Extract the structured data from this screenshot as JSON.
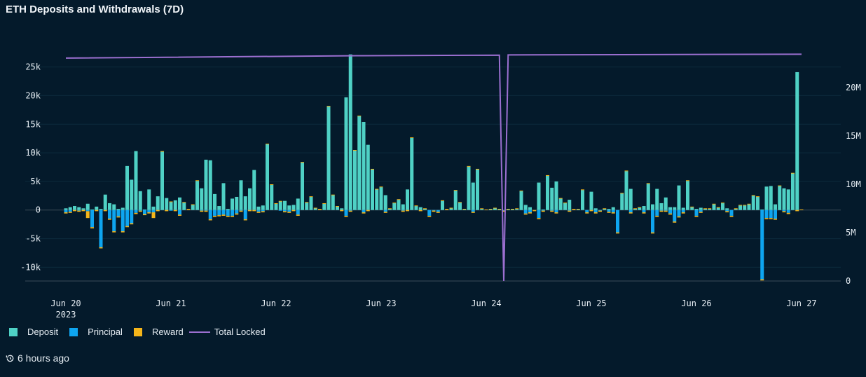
{
  "title": "ETH Deposits and Withdrawals (7D)",
  "footer": {
    "updated": "6 hours ago",
    "icon": "history-icon"
  },
  "legend": [
    {
      "label": "Deposit",
      "color": "#4fd1c5"
    },
    {
      "label": "Principal",
      "color": "#0ea5f0"
    },
    {
      "label": "Reward",
      "color": "#f5b51a"
    },
    {
      "label": "Total Locked",
      "color": "#9b6fd0"
    }
  ],
  "chart_data": {
    "type": "bar",
    "stacked": true,
    "grid": true,
    "legend_position": "bottom-left",
    "x_ticks": [
      {
        "at": "2023-06-20 00:00",
        "label": "Jun 20",
        "sublabel": "2023"
      },
      {
        "at": "2023-06-21 00:00",
        "label": "Jun 21"
      },
      {
        "at": "2023-06-22 00:00",
        "label": "Jun 22"
      },
      {
        "at": "2023-06-23 00:00",
        "label": "Jun 23"
      },
      {
        "at": "2023-06-24 00:00",
        "label": "Jun 24"
      },
      {
        "at": "2023-06-25 00:00",
        "label": "Jun 25"
      },
      {
        "at": "2023-06-26 00:00",
        "label": "Jun 26"
      },
      {
        "at": "2023-06-27 00:00",
        "label": "Jun 27"
      }
    ],
    "y_left": {
      "ylim": [
        -12400,
        27400
      ],
      "ticks": [
        -10000,
        -5000,
        0,
        5000,
        10000,
        15000,
        20000,
        25000
      ],
      "tick_labels": [
        "-10k",
        "-5k",
        "0",
        "5k",
        "10k",
        "15k",
        "20k",
        "25k"
      ]
    },
    "y_right": {
      "ylim": [
        0,
        23550000
      ],
      "ticks": [
        0,
        5000000,
        10000000,
        15000000,
        20000000
      ],
      "tick_labels": [
        "0",
        "5M",
        "10M",
        "15M",
        "20M"
      ]
    },
    "x": [
      "2023-06-20 00:00",
      "2023-06-20 01:00",
      "2023-06-20 02:00",
      "2023-06-20 03:00",
      "2023-06-20 04:00",
      "2023-06-20 05:00",
      "2023-06-20 06:00",
      "2023-06-20 07:00",
      "2023-06-20 08:00",
      "2023-06-20 09:00",
      "2023-06-20 10:00",
      "2023-06-20 11:00",
      "2023-06-20 12:00",
      "2023-06-20 13:00",
      "2023-06-20 14:00",
      "2023-06-20 15:00",
      "2023-06-20 16:00",
      "2023-06-20 17:00",
      "2023-06-20 18:00",
      "2023-06-20 19:00",
      "2023-06-20 20:00",
      "2023-06-20 21:00",
      "2023-06-20 22:00",
      "2023-06-20 23:00",
      "2023-06-21 00:00",
      "2023-06-21 01:00",
      "2023-06-21 02:00",
      "2023-06-21 03:00",
      "2023-06-21 04:00",
      "2023-06-21 05:00",
      "2023-06-21 06:00",
      "2023-06-21 07:00",
      "2023-06-21 08:00",
      "2023-06-21 09:00",
      "2023-06-21 10:00",
      "2023-06-21 11:00",
      "2023-06-21 12:00",
      "2023-06-21 13:00",
      "2023-06-21 14:00",
      "2023-06-21 15:00",
      "2023-06-21 16:00",
      "2023-06-21 17:00",
      "2023-06-21 18:00",
      "2023-06-21 19:00",
      "2023-06-21 20:00",
      "2023-06-21 21:00",
      "2023-06-21 22:00",
      "2023-06-21 23:00",
      "2023-06-22 00:00",
      "2023-06-22 01:00",
      "2023-06-22 02:00",
      "2023-06-22 03:00",
      "2023-06-22 04:00",
      "2023-06-22 05:00",
      "2023-06-22 06:00",
      "2023-06-22 07:00",
      "2023-06-22 08:00",
      "2023-06-22 09:00",
      "2023-06-22 10:00",
      "2023-06-22 11:00",
      "2023-06-22 12:00",
      "2023-06-22 13:00",
      "2023-06-22 14:00",
      "2023-06-22 15:00",
      "2023-06-22 16:00",
      "2023-06-22 17:00",
      "2023-06-22 18:00",
      "2023-06-22 19:00",
      "2023-06-22 20:00",
      "2023-06-22 21:00",
      "2023-06-22 22:00",
      "2023-06-22 23:00",
      "2023-06-23 00:00",
      "2023-06-23 01:00",
      "2023-06-23 02:00",
      "2023-06-23 03:00",
      "2023-06-23 04:00",
      "2023-06-23 05:00",
      "2023-06-23 06:00",
      "2023-06-23 07:00",
      "2023-06-23 08:00",
      "2023-06-23 09:00",
      "2023-06-23 10:00",
      "2023-06-23 11:00",
      "2023-06-23 12:00",
      "2023-06-23 13:00",
      "2023-06-23 14:00",
      "2023-06-23 15:00",
      "2023-06-23 16:00",
      "2023-06-23 17:00",
      "2023-06-23 18:00",
      "2023-06-23 19:00",
      "2023-06-23 20:00",
      "2023-06-23 21:00",
      "2023-06-23 22:00",
      "2023-06-23 23:00",
      "2023-06-24 00:00",
      "2023-06-24 01:00",
      "2023-06-24 02:00",
      "2023-06-24 03:00",
      "2023-06-24 04:00",
      "2023-06-24 05:00",
      "2023-06-24 06:00",
      "2023-06-24 07:00",
      "2023-06-24 08:00",
      "2023-06-24 09:00",
      "2023-06-24 10:00",
      "2023-06-24 11:00",
      "2023-06-24 12:00",
      "2023-06-24 13:00",
      "2023-06-24 14:00",
      "2023-06-24 15:00",
      "2023-06-24 16:00",
      "2023-06-24 17:00",
      "2023-06-24 18:00",
      "2023-06-24 19:00",
      "2023-06-24 20:00",
      "2023-06-24 21:00",
      "2023-06-24 22:00",
      "2023-06-24 23:00",
      "2023-06-25 00:00",
      "2023-06-25 01:00",
      "2023-06-25 02:00",
      "2023-06-25 03:00",
      "2023-06-25 04:00",
      "2023-06-25 05:00",
      "2023-06-25 06:00",
      "2023-06-25 07:00",
      "2023-06-25 08:00",
      "2023-06-25 09:00",
      "2023-06-25 10:00",
      "2023-06-25 11:00",
      "2023-06-25 12:00",
      "2023-06-25 13:00",
      "2023-06-25 14:00",
      "2023-06-25 15:00",
      "2023-06-25 16:00",
      "2023-06-25 17:00",
      "2023-06-25 18:00",
      "2023-06-25 19:00",
      "2023-06-25 20:00",
      "2023-06-25 21:00",
      "2023-06-25 22:00",
      "2023-06-25 23:00",
      "2023-06-26 00:00",
      "2023-06-26 01:00",
      "2023-06-26 02:00",
      "2023-06-26 03:00",
      "2023-06-26 04:00",
      "2023-06-26 05:00",
      "2023-06-26 06:00",
      "2023-06-26 07:00",
      "2023-06-26 08:00",
      "2023-06-26 09:00",
      "2023-06-26 10:00",
      "2023-06-26 11:00",
      "2023-06-26 12:00",
      "2023-06-26 13:00",
      "2023-06-26 14:00",
      "2023-06-26 15:00",
      "2023-06-26 16:00",
      "2023-06-26 17:00",
      "2023-06-26 18:00",
      "2023-06-26 19:00",
      "2023-06-26 20:00",
      "2023-06-26 21:00",
      "2023-06-26 22:00",
      "2023-06-26 23:00",
      "2023-06-27 00:00"
    ],
    "series": [
      {
        "name": "Deposit",
        "type": "bar",
        "axis": "left",
        "values": [
          300,
          500,
          700,
          500,
          300,
          1100,
          100,
          600,
          200,
          2700,
          1200,
          1000,
          200,
          400,
          7700,
          5300,
          10300,
          3300,
          100,
          3600,
          600,
          2400,
          10200,
          2100,
          1400,
          1700,
          2200,
          1300,
          0,
          900,
          5100,
          3800,
          8800,
          8700,
          2800,
          700,
          4700,
          200,
          2000,
          2300,
          5200,
          2400,
          3800,
          7000,
          600,
          800,
          11500,
          4400,
          1100,
          1500,
          1600,
          800,
          900,
          2000,
          8300,
          1300,
          2300,
          300,
          0,
          1100,
          18100,
          2600,
          600,
          300,
          19700,
          27200,
          10400,
          16400,
          15400,
          11400,
          7100,
          3600,
          4000,
          2600,
          200,
          1200,
          1800,
          1000,
          3600,
          12600,
          700,
          500,
          200,
          0,
          0,
          0,
          1600,
          0,
          300,
          3400,
          1300,
          100,
          7600,
          4800,
          7100,
          200,
          0,
          100,
          300,
          100,
          0,
          100,
          100,
          200,
          3300,
          900,
          500,
          0,
          4800,
          100,
          6000,
          3900,
          5000,
          2000,
          1200,
          1800,
          0,
          100,
          3500,
          0,
          3200,
          300,
          0,
          200,
          200,
          500,
          0,
          2900,
          6800,
          3700,
          200,
          400,
          700,
          4600,
          1000,
          3700,
          1200,
          2200,
          500,
          500,
          4300,
          400,
          5100,
          500,
          200,
          400,
          200,
          200,
          1000,
          400,
          1200,
          300,
          0,
          200,
          800,
          800,
          1000,
          2500,
          2300,
          100,
          4100,
          4200,
          1000,
          4200,
          3800,
          3600,
          6400,
          24100,
          0
        ]
      },
      {
        "name": "Principal",
        "type": "bar",
        "axis": "left",
        "values": [
          -400,
          -300,
          0,
          -100,
          0,
          -200,
          -3000,
          0,
          -6500,
          0,
          -1500,
          -3700,
          -1100,
          -3700,
          -2800,
          -2300,
          -500,
          -100,
          -700,
          -400,
          -400,
          0,
          0,
          0,
          -100,
          0,
          -800,
          0,
          0,
          0,
          0,
          -100,
          -100,
          -1600,
          -1000,
          -900,
          -800,
          -1000,
          -1000,
          -600,
          -100,
          -1600,
          0,
          0,
          -300,
          -200,
          0,
          0,
          0,
          -100,
          -200,
          -300,
          0,
          -800,
          0,
          0,
          0,
          0,
          0,
          0,
          0,
          0,
          0,
          0,
          -1000,
          -100,
          0,
          0,
          -400,
          0,
          0,
          0,
          0,
          -300,
          0,
          0,
          0,
          -100,
          0,
          0,
          0,
          0,
          0,
          -1000,
          -100,
          -300,
          0,
          0,
          0,
          0,
          0,
          0,
          0,
          -300,
          0,
          0,
          0,
          0,
          0,
          0,
          -100,
          0,
          0,
          0,
          0,
          -600,
          -400,
          0,
          -1400,
          -100,
          0,
          -100,
          -400,
          0,
          0,
          -100,
          0,
          0,
          0,
          -400,
          0,
          -400,
          -100,
          0,
          -300,
          -400,
          -3900,
          0,
          0,
          -400,
          0,
          0,
          -400,
          0,
          -3900,
          -1000,
          -100,
          -100,
          -600,
          -2000,
          -1100,
          -400,
          0,
          0,
          -1000,
          -300,
          0,
          0,
          0,
          0,
          0,
          -200,
          -1000,
          0,
          0,
          0,
          0,
          0,
          0,
          -12100,
          -1400,
          -1400,
          -1500,
          0,
          -200,
          -500,
          0,
          0,
          0
        ]
      },
      {
        "name": "Reward",
        "type": "bar",
        "axis": "left",
        "values": [
          -200,
          -200,
          -200,
          -200,
          -200,
          -1200,
          -200,
          -200,
          -200,
          -200,
          -200,
          -200,
          -200,
          -200,
          -200,
          -200,
          -200,
          -200,
          -200,
          -200,
          -1000,
          -200,
          100,
          -200,
          100,
          -200,
          -200,
          100,
          200,
          100,
          100,
          -200,
          -200,
          -200,
          -200,
          -200,
          -200,
          -200,
          -200,
          -200,
          -200,
          -200,
          -200,
          -200,
          -200,
          -200,
          100,
          100,
          100,
          100,
          -200,
          -200,
          -200,
          -200,
          100,
          100,
          100,
          100,
          200,
          100,
          100,
          100,
          100,
          -200,
          -200,
          -200,
          100,
          100,
          -200,
          -200,
          100,
          100,
          100,
          -200,
          100,
          100,
          100,
          -200,
          -200,
          100,
          100,
          -200,
          100,
          -200,
          -200,
          -200,
          100,
          200,
          100,
          100,
          100,
          100,
          100,
          -200,
          100,
          100,
          100,
          100,
          100,
          100,
          -200,
          100,
          100,
          100,
          100,
          -200,
          -200,
          -200,
          -200,
          -200,
          100,
          -200,
          -200,
          100,
          100,
          -200,
          200,
          100,
          100,
          -200,
          -200,
          -200,
          -200,
          100,
          -200,
          -200,
          -200,
          100,
          100,
          -200,
          100,
          100,
          -200,
          100,
          -200,
          -200,
          -200,
          -200,
          -200,
          -200,
          -200,
          -200,
          100,
          100,
          -200,
          -200,
          100,
          100,
          100,
          100,
          100,
          -200,
          -200,
          100,
          100,
          100,
          100,
          100,
          100,
          -200,
          -200,
          -200,
          -200,
          100,
          -200,
          -200,
          100,
          -200,
          100
        ]
      },
      {
        "name": "Total Locked",
        "type": "line",
        "axis": "right",
        "points": [
          {
            "t": "2023-06-20 00:00",
            "v": 23050000
          },
          {
            "t": "2023-06-22 20:00",
            "v": 23300000
          },
          {
            "t": "2023-06-24 03:00",
            "v": 23350000
          },
          {
            "t": "2023-06-24 04:00",
            "v": 0
          },
          {
            "t": "2023-06-24 05:00",
            "v": 23380000
          },
          {
            "t": "2023-06-27 00:00",
            "v": 23450000
          }
        ]
      }
    ]
  }
}
